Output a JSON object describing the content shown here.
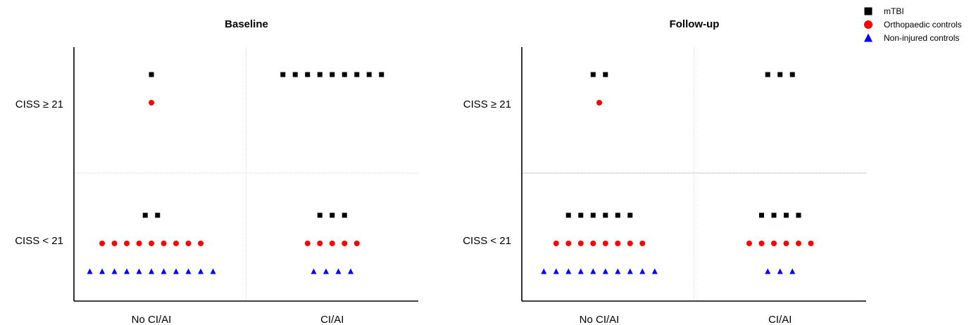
{
  "chart_data": [
    {
      "type": "scatter",
      "title": "Baseline",
      "x_categories": [
        "No CI/AI",
        "CI/AI"
      ],
      "y_categories": [
        "CISS < 21",
        "CISS ≥ 21"
      ],
      "grid": true,
      "cells": [
        {
          "x": "No CI/AI",
          "y": "CISS ≥ 21",
          "counts": {
            "mTBI": 1,
            "Orthopaedic controls": 1,
            "Non-injured controls": 0
          }
        },
        {
          "x": "CI/AI",
          "y": "CISS ≥ 21",
          "counts": {
            "mTBI": 9,
            "Orthopaedic controls": 0,
            "Non-injured controls": 0
          }
        },
        {
          "x": "No CI/AI",
          "y": "CISS < 21",
          "counts": {
            "mTBI": 2,
            "Orthopaedic controls": 9,
            "Non-injured controls": 11
          }
        },
        {
          "x": "CI/AI",
          "y": "CISS < 21",
          "counts": {
            "mTBI": 3,
            "Orthopaedic controls": 5,
            "Non-injured controls": 4
          }
        }
      ]
    },
    {
      "type": "scatter",
      "title": "Follow-up",
      "x_categories": [
        "No CI/AI",
        "CI/AI"
      ],
      "y_categories": [
        "CISS < 21",
        "CISS ≥ 21"
      ],
      "grid": true,
      "cells": [
        {
          "x": "No CI/AI",
          "y": "CISS ≥ 21",
          "counts": {
            "mTBI": 2,
            "Orthopaedic controls": 1,
            "Non-injured controls": 0
          }
        },
        {
          "x": "CI/AI",
          "y": "CISS ≥ 21",
          "counts": {
            "mTBI": 3,
            "Orthopaedic controls": 0,
            "Non-injured controls": 0
          }
        },
        {
          "x": "No CI/AI",
          "y": "CISS < 21",
          "counts": {
            "mTBI": 6,
            "Orthopaedic controls": 8,
            "Non-injured controls": 10
          }
        },
        {
          "x": "CI/AI",
          "y": "CISS < 21",
          "counts": {
            "mTBI": 4,
            "Orthopaedic controls": 6,
            "Non-injured controls": 3
          }
        }
      ]
    }
  ],
  "legend": {
    "placement": "top-right",
    "items": [
      {
        "label": "mTBI",
        "marker": "square",
        "color": "#000000"
      },
      {
        "label": "Orthopaedic controls",
        "marker": "circle",
        "color": "#ff0000"
      },
      {
        "label": "Non-injured controls",
        "marker": "triangle",
        "color": "#0000ff"
      }
    ]
  }
}
